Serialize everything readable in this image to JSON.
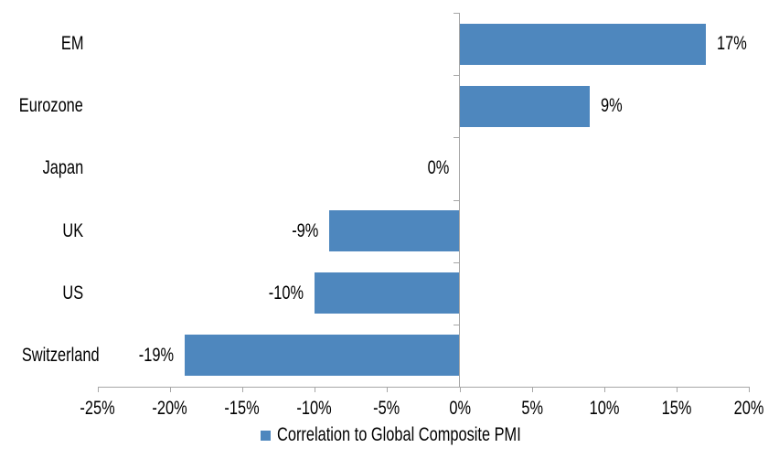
{
  "chart_data": {
    "type": "bar",
    "orientation": "horizontal",
    "title": "",
    "categories": [
      "EM",
      "Eurozone",
      "Japan",
      "UK",
      "US",
      "Switzerland"
    ],
    "values": [
      17,
      9,
      0,
      -9,
      -10,
      -19
    ],
    "value_labels": [
      "17%",
      "9%",
      "0%",
      "-9%",
      "-10%",
      "-19%"
    ],
    "series_name": "Correlation to Global Composite PMI",
    "xlabel": "",
    "ylabel": "",
    "xlim": [
      -25,
      20
    ],
    "x_tick_step": 5,
    "x_ticks": [
      {
        "value": -25,
        "label": "-25%"
      },
      {
        "value": -20,
        "label": "-20%"
      },
      {
        "value": -15,
        "label": "-15%"
      },
      {
        "value": -10,
        "label": "-10%"
      },
      {
        "value": -5,
        "label": "-5%"
      },
      {
        "value": 0,
        "label": "0%"
      },
      {
        "value": 5,
        "label": "5%"
      },
      {
        "value": 10,
        "label": "10%"
      },
      {
        "value": 15,
        "label": "15%"
      },
      {
        "value": 20,
        "label": "20%"
      }
    ],
    "grid": false,
    "legend_position": "bottom",
    "colors": {
      "bar": "#4E87BE",
      "axis": "#A6A6A6",
      "text": "#000000",
      "background": "#FFFFFF"
    }
  }
}
